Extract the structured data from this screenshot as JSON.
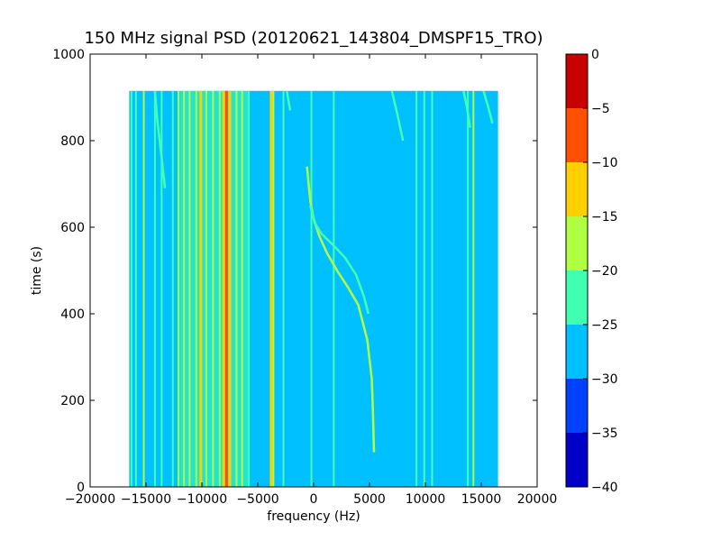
{
  "chart_data": {
    "type": "heatmap",
    "title": "150 MHz signal PSD (20120621_143804_DMSPF15_TRO)",
    "xlabel": "frequency (Hz)",
    "ylabel": "time (s)",
    "xlim": [
      -20000,
      20000
    ],
    "ylim": [
      0,
      1000
    ],
    "x_ticks": [
      "−20000",
      "−15000",
      "−10000",
      "−5000",
      "0",
      "5000",
      "10000",
      "15000",
      "20000"
    ],
    "y_ticks": [
      "0",
      "200",
      "400",
      "600",
      "800",
      "1000"
    ],
    "data_extent": {
      "x": [
        -16500,
        16500
      ],
      "y": [
        0,
        915
      ]
    },
    "background_level": -27.5,
    "colorbar": {
      "range": [
        -40,
        0
      ],
      "levels": [
        -40,
        -35,
        -30,
        -25,
        -20,
        -15,
        -10,
        -5,
        0
      ],
      "tick_labels": [
        "−40",
        "−35",
        "−30",
        "−25",
        "−20",
        "−15",
        "−10",
        "−5",
        "0"
      ],
      "colors": [
        "#0000c8",
        "#0040ff",
        "#00c0ff",
        "#40ffb0",
        "#b0ff40",
        "#ffd000",
        "#ff5000",
        "#c80000"
      ]
    },
    "left_block_level": -22.5,
    "left_block_range": [
      -12000,
      -5800
    ],
    "vertical_lines": [
      {
        "x": -16300,
        "level": -22.5
      },
      {
        "x": -15900,
        "level": -22.5
      },
      {
        "x": -15200,
        "level": -17.5
      },
      {
        "x": -14200,
        "level": -22.5
      },
      {
        "x": -13600,
        "level": -22.5
      },
      {
        "x": -12600,
        "level": -22.5
      },
      {
        "x": -12100,
        "level": -17.5
      },
      {
        "x": -11600,
        "level": -17.5
      },
      {
        "x": -11100,
        "level": -17.5
      },
      {
        "x": -10500,
        "level": -17.5
      },
      {
        "x": -10100,
        "level": -12.5
      },
      {
        "x": -9600,
        "level": -17.5
      },
      {
        "x": -9000,
        "level": -17.5
      },
      {
        "x": -8400,
        "level": -17.5
      },
      {
        "x": -8050,
        "level": -12.5
      },
      {
        "x": -7800,
        "level": -7.5
      },
      {
        "x": -7500,
        "level": -12.5
      },
      {
        "x": -6900,
        "level": -17.5
      },
      {
        "x": -6400,
        "level": -17.5
      },
      {
        "x": -5800,
        "level": -22.5
      },
      {
        "x": -3800,
        "level": -12.5
      },
      {
        "x": -3600,
        "level": -17.5
      },
      {
        "x": -2700,
        "level": -22.5
      },
      {
        "x": -200,
        "level": -22.5
      },
      {
        "x": 1800,
        "level": -22.5
      },
      {
        "x": 9200,
        "level": -22.5
      },
      {
        "x": 9900,
        "level": -22.5
      },
      {
        "x": 10600,
        "level": -22.5
      },
      {
        "x": 13800,
        "level": -22.5
      },
      {
        "x": 14300,
        "level": -17.5
      }
    ],
    "doppler_tracks": [
      {
        "level": -17.5,
        "points": [
          [
            -600,
            740
          ],
          [
            -300,
            660
          ],
          [
            0,
            620
          ],
          [
            500,
            580
          ],
          [
            1200,
            540
          ],
          [
            2100,
            500
          ],
          [
            3100,
            460
          ],
          [
            4000,
            420
          ],
          [
            4800,
            340
          ],
          [
            5200,
            250
          ],
          [
            5300,
            180
          ],
          [
            5400,
            80
          ]
        ]
      },
      {
        "level": -22.5,
        "points": [
          [
            -300,
            650
          ],
          [
            100,
            610
          ],
          [
            700,
            585
          ],
          [
            1700,
            560
          ],
          [
            2800,
            530
          ],
          [
            3800,
            490
          ],
          [
            4500,
            440
          ],
          [
            4900,
            400
          ]
        ]
      },
      {
        "level": -22.5,
        "points": [
          [
            7000,
            915
          ],
          [
            7500,
            860
          ],
          [
            8000,
            800
          ]
        ]
      },
      {
        "level": -22.5,
        "points": [
          [
            -14200,
            915
          ],
          [
            -14000,
            850
          ],
          [
            -13600,
            760
          ],
          [
            -13300,
            690
          ]
        ]
      },
      {
        "level": -22.5,
        "points": [
          [
            -2400,
            915
          ],
          [
            -2100,
            870
          ]
        ]
      },
      {
        "level": -22.5,
        "points": [
          [
            13400,
            915
          ],
          [
            13700,
            880
          ],
          [
            14000,
            830
          ]
        ]
      },
      {
        "level": -22.5,
        "points": [
          [
            15200,
            915
          ],
          [
            15600,
            880
          ],
          [
            16000,
            840
          ]
        ]
      }
    ]
  }
}
